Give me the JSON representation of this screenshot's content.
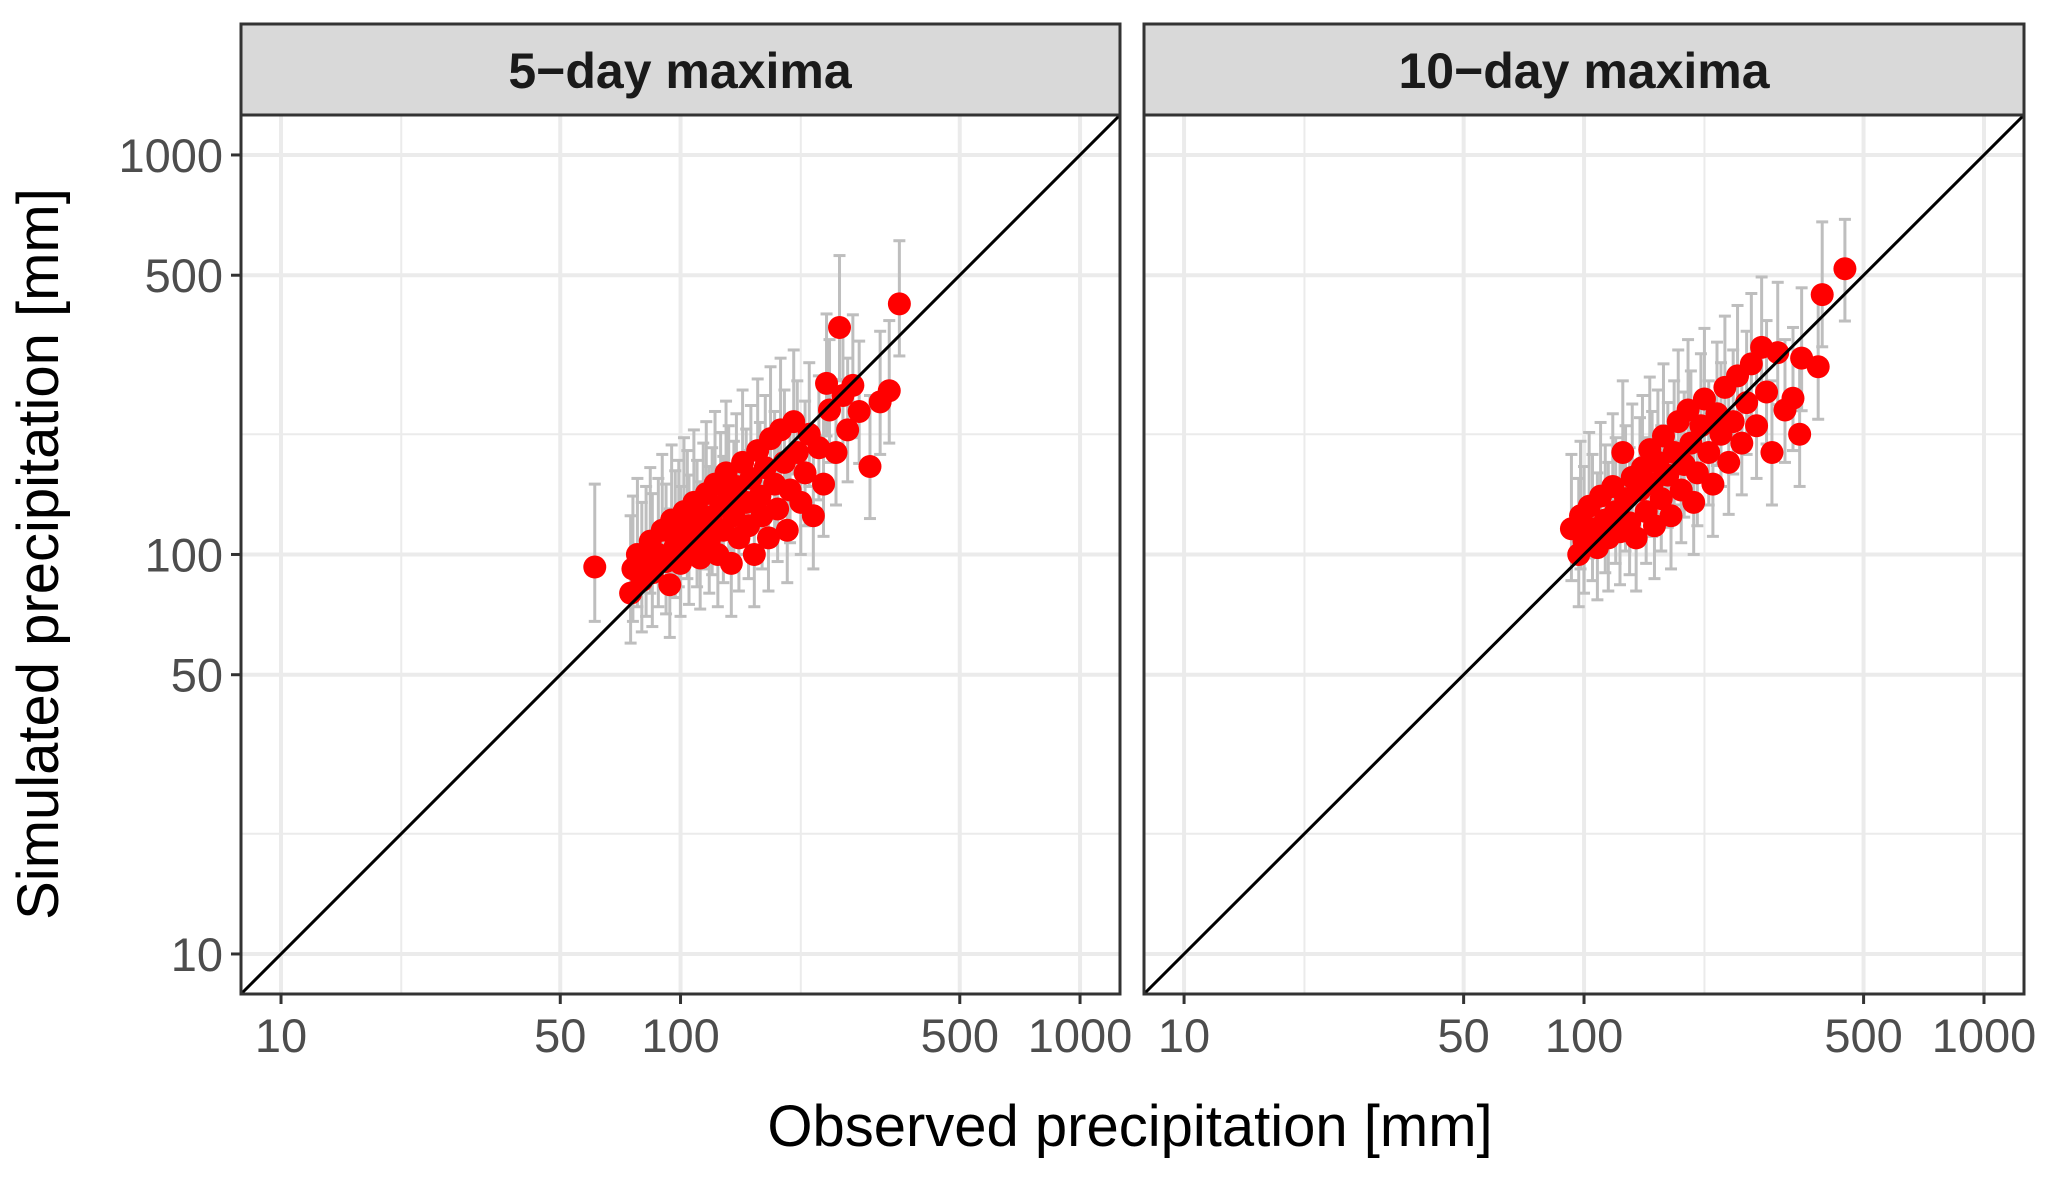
{
  "chart_data": {
    "type": "scatter",
    "xlabel": "Observed precipitation [mm]",
    "ylabel": "Simulated precipitation [mm]",
    "x_scale": "log10",
    "y_scale": "log10",
    "xlim": [
      7.94,
      1259
    ],
    "ylim": [
      7.94,
      1259
    ],
    "x_ticks": [
      10,
      50,
      100,
      500,
      1000
    ],
    "y_ticks": [
      10,
      50,
      100,
      500,
      1000
    ],
    "x_tick_labels": [
      "10",
      "50",
      "100",
      "500",
      "1000"
    ],
    "y_tick_labels": [
      "10",
      "50",
      "100",
      "500",
      "1000"
    ],
    "minor_grid": [
      20,
      200
    ],
    "grid": true,
    "reference_line": "1:1 identity line (y = x)",
    "colors": {
      "points": "#ff0000",
      "error_bars": "#bebebe",
      "identity_line": "#000000",
      "strip_fill": "#d9d9d9",
      "panel_border": "#333333",
      "grid": "#ebebeb"
    },
    "panels": [
      {
        "title": "5−day maxima",
        "points": [
          {
            "obs": 61,
            "sim": 93,
            "lo": 68,
            "hi": 150
          },
          {
            "obs": 75,
            "sim": 80,
            "lo": 60,
            "hi": 125
          },
          {
            "obs": 76,
            "sim": 92,
            "lo": 68,
            "hi": 140
          },
          {
            "obs": 78,
            "sim": 100,
            "lo": 74,
            "hi": 155
          },
          {
            "obs": 80,
            "sim": 86,
            "lo": 64,
            "hi": 135
          },
          {
            "obs": 82,
            "sim": 95,
            "lo": 70,
            "hi": 148
          },
          {
            "obs": 84,
            "sim": 108,
            "lo": 80,
            "hi": 165
          },
          {
            "obs": 85,
            "sim": 90,
            "lo": 66,
            "hi": 142
          },
          {
            "obs": 88,
            "sim": 100,
            "lo": 74,
            "hi": 155
          },
          {
            "obs": 90,
            "sim": 115,
            "lo": 85,
            "hi": 178
          },
          {
            "obs": 92,
            "sim": 96,
            "lo": 71,
            "hi": 150
          },
          {
            "obs": 94,
            "sim": 84,
            "lo": 62,
            "hi": 130
          },
          {
            "obs": 95,
            "sim": 122,
            "lo": 90,
            "hi": 188
          },
          {
            "obs": 97,
            "sim": 105,
            "lo": 78,
            "hi": 162
          },
          {
            "obs": 99,
            "sim": 112,
            "lo": 83,
            "hi": 172
          },
          {
            "obs": 100,
            "sim": 95,
            "lo": 70,
            "hi": 148
          },
          {
            "obs": 102,
            "sim": 128,
            "lo": 95,
            "hi": 196
          },
          {
            "obs": 104,
            "sim": 118,
            "lo": 87,
            "hi": 182
          },
          {
            "obs": 105,
            "sim": 102,
            "lo": 75,
            "hi": 158
          },
          {
            "obs": 108,
            "sim": 135,
            "lo": 100,
            "hi": 205
          },
          {
            "obs": 110,
            "sim": 112,
            "lo": 83,
            "hi": 172
          },
          {
            "obs": 112,
            "sim": 98,
            "lo": 73,
            "hi": 152
          },
          {
            "obs": 114,
            "sim": 125,
            "lo": 92,
            "hi": 190
          },
          {
            "obs": 116,
            "sim": 142,
            "lo": 105,
            "hi": 215
          },
          {
            "obs": 118,
            "sim": 108,
            "lo": 80,
            "hi": 166
          },
          {
            "obs": 120,
            "sim": 120,
            "lo": 89,
            "hi": 185
          },
          {
            "obs": 122,
            "sim": 150,
            "lo": 111,
            "hi": 228
          },
          {
            "obs": 124,
            "sim": 100,
            "lo": 74,
            "hi": 155
          },
          {
            "obs": 126,
            "sim": 132,
            "lo": 98,
            "hi": 202
          },
          {
            "obs": 128,
            "sim": 115,
            "lo": 85,
            "hi": 176
          },
          {
            "obs": 130,
            "sim": 160,
            "lo": 118,
            "hi": 242
          },
          {
            "obs": 132,
            "sim": 138,
            "lo": 102,
            "hi": 210
          },
          {
            "obs": 134,
            "sim": 95,
            "lo": 70,
            "hi": 148
          },
          {
            "obs": 136,
            "sim": 125,
            "lo": 92,
            "hi": 192
          },
          {
            "obs": 138,
            "sim": 148,
            "lo": 110,
            "hi": 225
          },
          {
            "obs": 140,
            "sim": 110,
            "lo": 81,
            "hi": 170
          },
          {
            "obs": 143,
            "sim": 170,
            "lo": 126,
            "hi": 258
          },
          {
            "obs": 146,
            "sim": 135,
            "lo": 100,
            "hi": 206
          },
          {
            "obs": 148,
            "sim": 118,
            "lo": 87,
            "hi": 182
          },
          {
            "obs": 150,
            "sim": 155,
            "lo": 115,
            "hi": 236
          },
          {
            "obs": 153,
            "sim": 100,
            "lo": 74,
            "hi": 155
          },
          {
            "obs": 156,
            "sim": 182,
            "lo": 135,
            "hi": 275
          },
          {
            "obs": 158,
            "sim": 140,
            "lo": 104,
            "hi": 214
          },
          {
            "obs": 160,
            "sim": 125,
            "lo": 92,
            "hi": 192
          },
          {
            "obs": 163,
            "sim": 165,
            "lo": 122,
            "hi": 250
          },
          {
            "obs": 166,
            "sim": 110,
            "lo": 81,
            "hi": 170
          },
          {
            "obs": 168,
            "sim": 195,
            "lo": 144,
            "hi": 295
          },
          {
            "obs": 172,
            "sim": 150,
            "lo": 111,
            "hi": 228
          },
          {
            "obs": 175,
            "sim": 130,
            "lo": 96,
            "hi": 198
          },
          {
            "obs": 178,
            "sim": 205,
            "lo": 152,
            "hi": 310
          },
          {
            "obs": 182,
            "sim": 170,
            "lo": 126,
            "hi": 258
          },
          {
            "obs": 185,
            "sim": 115,
            "lo": 85,
            "hi": 176
          },
          {
            "obs": 188,
            "sim": 145,
            "lo": 107,
            "hi": 220
          },
          {
            "obs": 192,
            "sim": 215,
            "lo": 159,
            "hi": 325
          },
          {
            "obs": 196,
            "sim": 180,
            "lo": 133,
            "hi": 272
          },
          {
            "obs": 200,
            "sim": 135,
            "lo": 100,
            "hi": 206
          },
          {
            "obs": 205,
            "sim": 160,
            "lo": 118,
            "hi": 242
          },
          {
            "obs": 210,
            "sim": 200,
            "lo": 148,
            "hi": 302
          },
          {
            "obs": 215,
            "sim": 125,
            "lo": 92,
            "hi": 192
          },
          {
            "obs": 222,
            "sim": 185,
            "lo": 137,
            "hi": 280
          },
          {
            "obs": 228,
            "sim": 150,
            "lo": 111,
            "hi": 228
          },
          {
            "obs": 232,
            "sim": 268,
            "lo": 198,
            "hi": 400
          },
          {
            "obs": 236,
            "sim": 230,
            "lo": 170,
            "hi": 345
          },
          {
            "obs": 245,
            "sim": 180,
            "lo": 133,
            "hi": 272
          },
          {
            "obs": 250,
            "sim": 370,
            "lo": 274,
            "hi": 560
          },
          {
            "obs": 255,
            "sim": 250,
            "lo": 185,
            "hi": 375
          },
          {
            "obs": 262,
            "sim": 205,
            "lo": 152,
            "hi": 310
          },
          {
            "obs": 270,
            "sim": 265,
            "lo": 196,
            "hi": 398
          },
          {
            "obs": 280,
            "sim": 228,
            "lo": 169,
            "hi": 342
          },
          {
            "obs": 298,
            "sim": 166,
            "lo": 123,
            "hi": 250
          },
          {
            "obs": 316,
            "sim": 241,
            "lo": 178,
            "hi": 362
          },
          {
            "obs": 333,
            "sim": 257,
            "lo": 190,
            "hi": 385
          },
          {
            "obs": 353,
            "sim": 424,
            "lo": 314,
            "hi": 610
          }
        ]
      },
      {
        "title": "10−day maxima",
        "points": [
          {
            "obs": 93,
            "sim": 116,
            "lo": 86,
            "hi": 178
          },
          {
            "obs": 97,
            "sim": 100,
            "lo": 74,
            "hi": 155
          },
          {
            "obs": 98,
            "sim": 125,
            "lo": 92,
            "hi": 192
          },
          {
            "obs": 100,
            "sim": 108,
            "lo": 80,
            "hi": 166
          },
          {
            "obs": 103,
            "sim": 132,
            "lo": 98,
            "hi": 202
          },
          {
            "obs": 105,
            "sim": 116,
            "lo": 86,
            "hi": 178
          },
          {
            "obs": 108,
            "sim": 104,
            "lo": 77,
            "hi": 160
          },
          {
            "obs": 110,
            "sim": 140,
            "lo": 104,
            "hi": 214
          },
          {
            "obs": 113,
            "sim": 122,
            "lo": 90,
            "hi": 188
          },
          {
            "obs": 115,
            "sim": 110,
            "lo": 81,
            "hi": 170
          },
          {
            "obs": 118,
            "sim": 148,
            "lo": 110,
            "hi": 225
          },
          {
            "obs": 120,
            "sim": 128,
            "lo": 95,
            "hi": 196
          },
          {
            "obs": 123,
            "sim": 114,
            "lo": 84,
            "hi": 175
          },
          {
            "obs": 125,
            "sim": 180,
            "lo": 133,
            "hi": 272
          },
          {
            "obs": 127,
            "sim": 138,
            "lo": 102,
            "hi": 210
          },
          {
            "obs": 130,
            "sim": 120,
            "lo": 89,
            "hi": 185
          },
          {
            "obs": 132,
            "sim": 156,
            "lo": 115,
            "hi": 238
          },
          {
            "obs": 135,
            "sim": 110,
            "lo": 81,
            "hi": 170
          },
          {
            "obs": 138,
            "sim": 145,
            "lo": 107,
            "hi": 220
          },
          {
            "obs": 140,
            "sim": 165,
            "lo": 122,
            "hi": 250
          },
          {
            "obs": 143,
            "sim": 128,
            "lo": 95,
            "hi": 196
          },
          {
            "obs": 146,
            "sim": 183,
            "lo": 135,
            "hi": 278
          },
          {
            "obs": 148,
            "sim": 150,
            "lo": 111,
            "hi": 228
          },
          {
            "obs": 150,
            "sim": 118,
            "lo": 87,
            "hi": 182
          },
          {
            "obs": 153,
            "sim": 170,
            "lo": 126,
            "hi": 258
          },
          {
            "obs": 156,
            "sim": 138,
            "lo": 102,
            "hi": 210
          },
          {
            "obs": 158,
            "sim": 198,
            "lo": 147,
            "hi": 300
          },
          {
            "obs": 162,
            "sim": 158,
            "lo": 117,
            "hi": 240
          },
          {
            "obs": 165,
            "sim": 125,
            "lo": 92,
            "hi": 192
          },
          {
            "obs": 168,
            "sim": 180,
            "lo": 133,
            "hi": 272
          },
          {
            "obs": 172,
            "sim": 215,
            "lo": 159,
            "hi": 325
          },
          {
            "obs": 175,
            "sim": 145,
            "lo": 107,
            "hi": 220
          },
          {
            "obs": 178,
            "sim": 168,
            "lo": 124,
            "hi": 255
          },
          {
            "obs": 182,
            "sim": 230,
            "lo": 170,
            "hi": 345
          },
          {
            "obs": 185,
            "sim": 190,
            "lo": 141,
            "hi": 288
          },
          {
            "obs": 188,
            "sim": 135,
            "lo": 100,
            "hi": 206
          },
          {
            "obs": 192,
            "sim": 160,
            "lo": 118,
            "hi": 242
          },
          {
            "obs": 196,
            "sim": 210,
            "lo": 155,
            "hi": 318
          },
          {
            "obs": 200,
            "sim": 245,
            "lo": 181,
            "hi": 368
          },
          {
            "obs": 205,
            "sim": 180,
            "lo": 133,
            "hi": 272
          },
          {
            "obs": 210,
            "sim": 150,
            "lo": 111,
            "hi": 228
          },
          {
            "obs": 215,
            "sim": 225,
            "lo": 167,
            "hi": 340
          },
          {
            "obs": 220,
            "sim": 200,
            "lo": 148,
            "hi": 302
          },
          {
            "obs": 225,
            "sim": 262,
            "lo": 194,
            "hi": 395
          },
          {
            "obs": 230,
            "sim": 170,
            "lo": 126,
            "hi": 258
          },
          {
            "obs": 236,
            "sim": 215,
            "lo": 159,
            "hi": 325
          },
          {
            "obs": 242,
            "sim": 280,
            "lo": 207,
            "hi": 420
          },
          {
            "obs": 248,
            "sim": 190,
            "lo": 141,
            "hi": 288
          },
          {
            "obs": 255,
            "sim": 240,
            "lo": 178,
            "hi": 362
          },
          {
            "obs": 262,
            "sim": 300,
            "lo": 222,
            "hi": 450
          },
          {
            "obs": 270,
            "sim": 210,
            "lo": 155,
            "hi": 318
          },
          {
            "obs": 278,
            "sim": 330,
            "lo": 244,
            "hi": 495
          },
          {
            "obs": 286,
            "sim": 255,
            "lo": 189,
            "hi": 385
          },
          {
            "obs": 295,
            "sim": 180,
            "lo": 133,
            "hi": 272
          },
          {
            "obs": 305,
            "sim": 320,
            "lo": 237,
            "hi": 480
          },
          {
            "obs": 318,
            "sim": 230,
            "lo": 170,
            "hi": 345
          },
          {
            "obs": 333,
            "sim": 246,
            "lo": 182,
            "hi": 370
          },
          {
            "obs": 346,
            "sim": 200,
            "lo": 148,
            "hi": 302
          },
          {
            "obs": 350,
            "sim": 310,
            "lo": 229,
            "hi": 465
          },
          {
            "obs": 385,
            "sim": 295,
            "lo": 218,
            "hi": 440
          },
          {
            "obs": 394,
            "sim": 447,
            "lo": 331,
            "hi": 680
          },
          {
            "obs": 449,
            "sim": 519,
            "lo": 384,
            "hi": 690
          }
        ]
      }
    ]
  }
}
